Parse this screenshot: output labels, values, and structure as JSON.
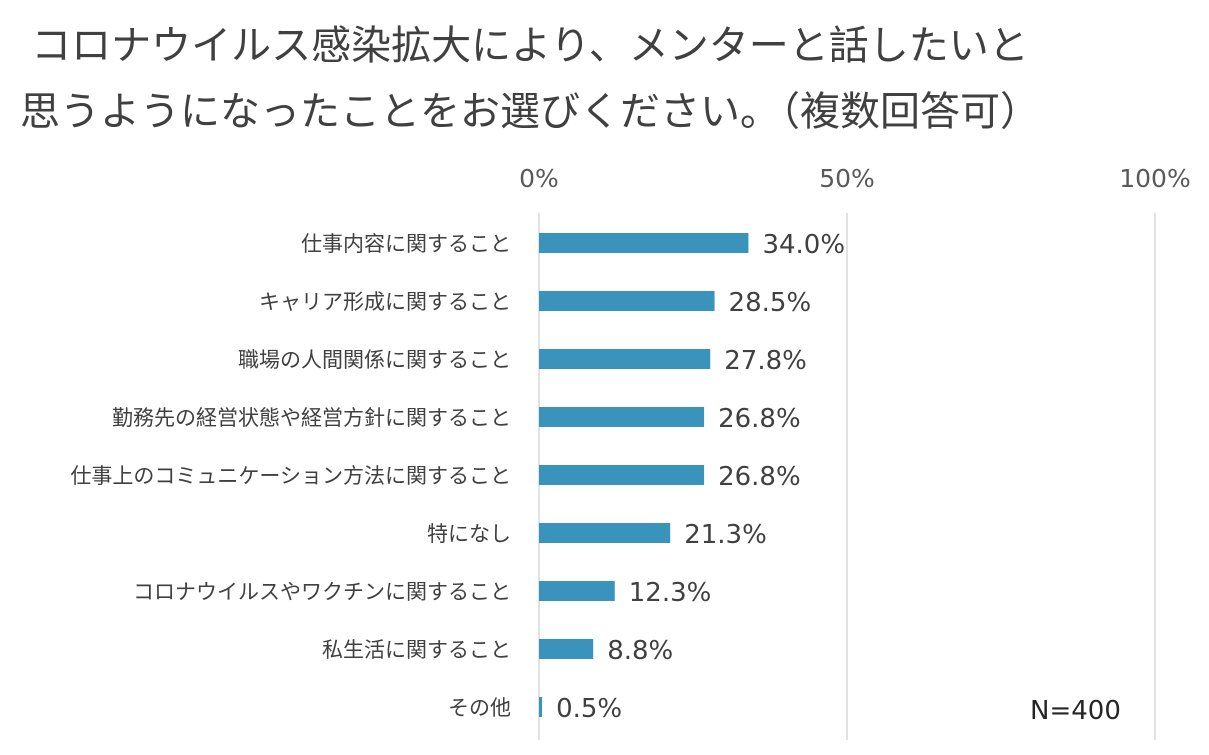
{
  "chart_data": {
    "type": "bar",
    "orientation": "horizontal",
    "title_lines": [
      "コロナウイルス感染拡大により、メンターと話したいと",
      "思うようになったことをお選びください。（複数回答可）"
    ],
    "categories": [
      "仕事内容に関すること",
      "キャリア形成に関すること",
      "職場の人間関係に関すること",
      "勤務先の経営状態や経営方針に関すること",
      "仕事上のコミュニケーション方法に関すること",
      "特になし",
      "コロナウイルスやワクチンに関すること",
      "私生活に関すること",
      "その他"
    ],
    "values": [
      34.0,
      28.5,
      27.8,
      26.8,
      26.8,
      21.3,
      12.3,
      8.8,
      0.5
    ],
    "value_labels": [
      "34.0%",
      "28.5%",
      "27.8%",
      "26.8%",
      "26.8%",
      "21.3%",
      "12.3%",
      "8.8%",
      "0.5%"
    ],
    "xlim": [
      0,
      100
    ],
    "x_ticks": [
      0,
      50,
      100
    ],
    "x_tick_labels": [
      "0%",
      "50%",
      "100%"
    ],
    "grid": true,
    "axis_position": "top",
    "bar_color": "#3A93BB",
    "grid_color": "#D9D9D9",
    "note": "N=400"
  }
}
